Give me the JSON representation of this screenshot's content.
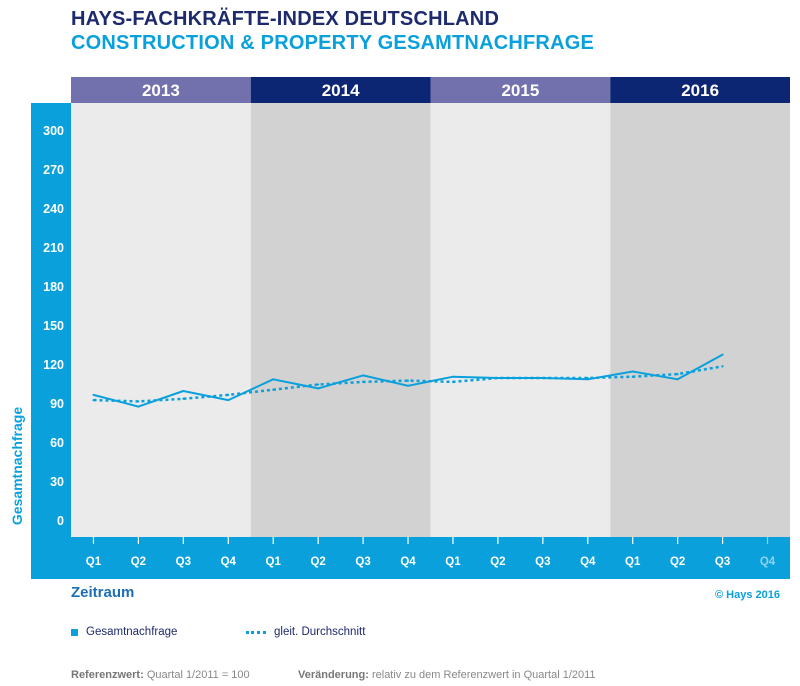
{
  "title": "HAYS-FACHKRÄFTE-INDEX DEUTSCHLAND",
  "subtitle": "CONSTRUCTION & PROPERTY GESAMTNACHFRAGE",
  "copyright": "© Hays 2016",
  "legend": {
    "series1": "Gesamtnachfrage",
    "series2": "gleit. Durchschnitt"
  },
  "footnote": {
    "ref_label": "Referenzwert:",
    "ref_value": "Quartal 1/2011 = 100",
    "change_label": "Veränderung:",
    "change_value": "relativ zu dem Referenzwert in Quartal 1/2011"
  },
  "colors": {
    "accent": "#0aa0dc",
    "navy": "#1d2a6b",
    "year_light": "#7270ad",
    "year_dark": "#0c2674",
    "band_light": "#ebebeb",
    "band_dark": "#d2d2d2"
  },
  "chart_data": {
    "type": "line",
    "ylabel": "Gesamtnachfrage",
    "xlabel": "Zeitraum",
    "ylim": [
      0,
      300
    ],
    "yticks": [
      0,
      30,
      60,
      90,
      120,
      150,
      180,
      210,
      240,
      270,
      300
    ],
    "years": [
      "2013",
      "2014",
      "2015",
      "2016"
    ],
    "categories": [
      "Q1",
      "Q2",
      "Q3",
      "Q4",
      "Q1",
      "Q2",
      "Q3",
      "Q4",
      "Q1",
      "Q2",
      "Q3",
      "Q4",
      "Q1",
      "Q2",
      "Q3",
      "Q4"
    ],
    "series": [
      {
        "name": "Gesamtnachfrage",
        "style": "solid",
        "values": [
          97,
          88,
          100,
          93,
          109,
          102,
          112,
          104,
          111,
          110,
          110,
          109,
          115,
          109,
          128,
          null
        ]
      },
      {
        "name": "gleit. Durchschnitt",
        "style": "dotted",
        "values": [
          93,
          92,
          94,
          97,
          101,
          105,
          107,
          108,
          107,
          110,
          110,
          110,
          111,
          113,
          119,
          null
        ]
      }
    ],
    "grid": false,
    "legend_position": "bottom-left"
  }
}
